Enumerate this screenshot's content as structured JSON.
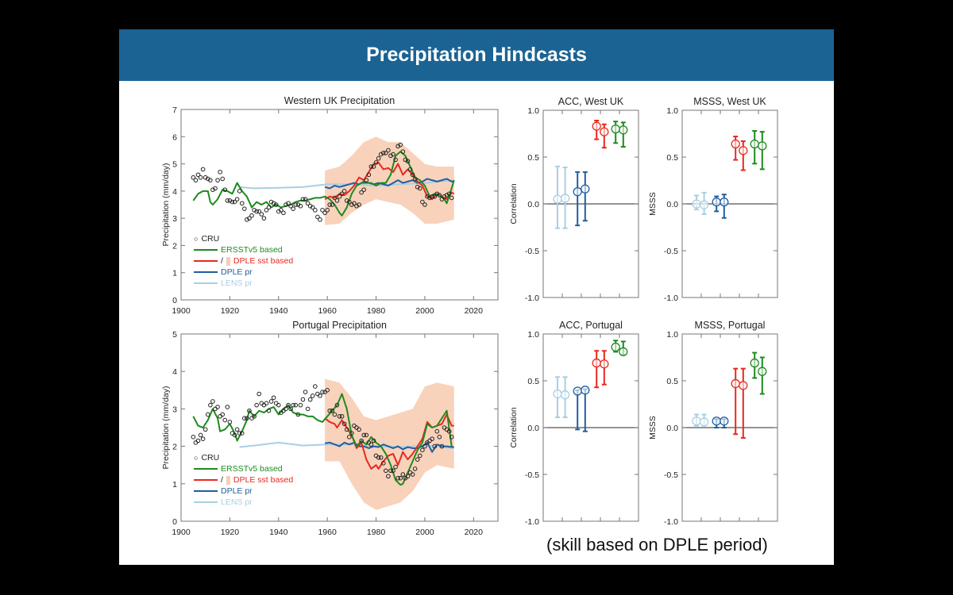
{
  "slide": {
    "title": "Precipitation Hindcasts",
    "note": "(skill based on DPLE period)"
  },
  "colors": {
    "cru": "#222222",
    "ersst": "#1e8a1e",
    "dple_sst": "#e8281e",
    "spread": "#f8cdb4",
    "dple_pr": "#1f5fa0",
    "lens": "#a9cfe3"
  },
  "legend": {
    "cru": "CRU",
    "ersst": "ERSSTv5 based",
    "slash": "/",
    "dple_sst": "DPLE sst based",
    "dple_pr": "DPLE pr",
    "lens": "LENS pr"
  },
  "chart_data": [
    {
      "type": "line",
      "title": "Western UK Precipitation",
      "xlabel": "",
      "ylabel": "Precipitation (mm/day)",
      "xlim": [
        1900,
        2030
      ],
      "ylim": [
        0,
        7
      ],
      "xticks": [
        1900,
        1920,
        1940,
        1960,
        1980,
        2000,
        2020
      ],
      "yticks": [
        0,
        1,
        2,
        3,
        4,
        5,
        6,
        7
      ],
      "cru": {
        "x0": 1905,
        "values": [
          4.5,
          4.4,
          4.6,
          4.5,
          4.8,
          4.5,
          4.45,
          4.4,
          4.05,
          4.1,
          4.4,
          4.7,
          4.45,
          4.05,
          3.65,
          3.65,
          3.6,
          3.6,
          3.7,
          4.0,
          3.55,
          3.35,
          2.95,
          3.0,
          3.1,
          3.3,
          3.25,
          3.25,
          3.15,
          3.0,
          3.3,
          3.4,
          3.6,
          3.55,
          3.5,
          3.25,
          3.3,
          3.2,
          3.5,
          3.55,
          3.45,
          3.35,
          3.5,
          3.5,
          3.45,
          3.7,
          3.7,
          3.55,
          3.45,
          3.4,
          3.3,
          3.05,
          2.95,
          3.3,
          3.2,
          3.3,
          3.5,
          3.5,
          3.75,
          3.65,
          3.8,
          3.9,
          4.0,
          3.65,
          3.6,
          3.5,
          3.55,
          3.45,
          3.5,
          3.95,
          4.05,
          4.4,
          4.6,
          4.9,
          4.9,
          5.05,
          5.2,
          5.35,
          5.4,
          5.4,
          5.5,
          5.3,
          5.35,
          5.15,
          5.65,
          5.7,
          5.45,
          5.15,
          5.1,
          4.8,
          4.6,
          4.45,
          4.15,
          4.1,
          3.6,
          3.5,
          3.8,
          3.75,
          3.8,
          3.8,
          3.9,
          3.85,
          3.7,
          3.8,
          3.85,
          3.9,
          3.75
        ]
      },
      "ersst": {
        "x": [
          1905,
          1907,
          1909,
          1911,
          1912,
          1913,
          1915,
          1917,
          1919,
          1921,
          1923,
          1925,
          1927,
          1929,
          1931,
          1933,
          1935,
          1937,
          1939,
          1941,
          1943,
          1945,
          1947,
          1949,
          1951,
          1953,
          1955,
          1957,
          1959,
          1961,
          1963,
          1965,
          1966,
          1968,
          1970,
          1972,
          1974,
          1976,
          1978,
          1980,
          1982,
          1984,
          1986,
          1988,
          1990,
          1992,
          1994,
          1996,
          1998,
          2000,
          2002,
          2004,
          2006,
          2008,
          2009,
          2011,
          2012
        ],
        "y": [
          3.65,
          3.9,
          4.0,
          4.0,
          3.6,
          3.5,
          3.7,
          4.05,
          4.0,
          3.9,
          4.3,
          4.0,
          3.8,
          3.4,
          3.6,
          3.5,
          3.6,
          3.4,
          3.5,
          3.4,
          3.45,
          3.5,
          3.6,
          3.65,
          3.65,
          3.7,
          3.75,
          3.75,
          3.8,
          3.7,
          3.5,
          3.2,
          3.1,
          3.4,
          3.9,
          4.2,
          4.3,
          4.3,
          4.3,
          4.2,
          4.3,
          4.3,
          4.6,
          5.3,
          5.45,
          5.3,
          4.9,
          4.5,
          4.4,
          4.2,
          3.8,
          3.9,
          3.85,
          3.7,
          3.55,
          4.1,
          4.4
        ]
      },
      "dple_sst": {
        "x": [
          1959,
          1961,
          1963,
          1965,
          1967,
          1969,
          1971,
          1973,
          1975,
          1977,
          1979,
          1981,
          1983,
          1985,
          1987,
          1989,
          1991,
          1993,
          1995,
          1997,
          1999,
          2001,
          2003,
          2005,
          2007,
          2009,
          2011,
          2012
        ],
        "y": [
          3.7,
          3.8,
          3.75,
          3.9,
          3.85,
          4.0,
          4.2,
          4.5,
          4.4,
          4.7,
          5.0,
          5.05,
          4.8,
          4.85,
          4.7,
          5.0,
          4.6,
          4.8,
          4.6,
          4.35,
          4.2,
          3.8,
          3.7,
          3.9,
          3.8,
          3.7,
          3.95,
          3.9
        ]
      },
      "spread": {
        "x": [
          1959,
          1965,
          1970,
          1975,
          1980,
          1985,
          1990,
          1995,
          2000,
          2005,
          2012
        ],
        "lower": [
          2.75,
          2.8,
          3.2,
          3.5,
          3.7,
          3.6,
          3.5,
          3.2,
          2.8,
          2.8,
          2.95
        ],
        "upper": [
          4.75,
          4.9,
          5.3,
          5.8,
          6.0,
          5.8,
          5.8,
          5.4,
          5.0,
          4.9,
          4.9
        ]
      },
      "dple_pr": {
        "x": [
          1959,
          1961,
          1963,
          1965,
          1967,
          1969,
          1971,
          1973,
          1975,
          1977,
          1979,
          1981,
          1983,
          1985,
          1987,
          1989,
          1991,
          1993,
          1995,
          1997,
          1999,
          2001,
          2003,
          2005,
          2007,
          2009,
          2011,
          2012
        ],
        "y": [
          4.15,
          4.1,
          4.2,
          4.15,
          4.2,
          4.25,
          4.3,
          4.25,
          4.35,
          4.3,
          4.25,
          4.3,
          4.25,
          4.2,
          4.3,
          4.4,
          4.3,
          4.35,
          4.4,
          4.3,
          4.35,
          4.45,
          4.4,
          4.35,
          4.4,
          4.45,
          4.35,
          4.35
        ]
      },
      "lens": {
        "x": [
          1924,
          1930,
          1940,
          1950,
          1960,
          1970,
          1980,
          1990,
          2000,
          2012
        ],
        "y": [
          4.15,
          4.1,
          4.12,
          4.15,
          4.25,
          4.25,
          4.2,
          4.25,
          4.3,
          4.4
        ]
      }
    },
    {
      "type": "line",
      "title": "Portugal Precipitation",
      "xlabel": "",
      "ylabel": "Precipitation (mm/day)",
      "xlim": [
        1900,
        2030
      ],
      "ylim": [
        0,
        5
      ],
      "xticks": [
        1900,
        1920,
        1940,
        1960,
        1980,
        2000,
        2020
      ],
      "yticks": [
        0,
        1,
        2,
        3,
        4,
        5
      ],
      "cru": {
        "x0": 1905,
        "values": [
          2.25,
          2.1,
          2.15,
          2.3,
          2.2,
          2.45,
          2.85,
          3.1,
          3.2,
          3.0,
          3.05,
          2.8,
          2.85,
          2.7,
          3.05,
          2.65,
          2.35,
          2.3,
          2.45,
          2.35,
          2.35,
          2.75,
          2.75,
          2.95,
          2.75,
          2.8,
          3.1,
          3.4,
          3.15,
          3.1,
          3.15,
          2.95,
          3.2,
          3.3,
          3.15,
          3.1,
          2.9,
          2.95,
          3.0,
          3.1,
          3.0,
          3.1,
          3.1,
          2.85,
          3.1,
          3.25,
          3.45,
          3.0,
          3.25,
          3.35,
          3.6,
          3.4,
          3.35,
          3.45,
          3.45,
          3.5,
          2.95,
          2.95,
          2.85,
          3.1,
          2.8,
          2.8,
          2.6,
          2.45,
          2.25,
          2.35,
          2.55,
          2.5,
          2.45,
          2.15,
          2.3,
          2.3,
          2.1,
          2.05,
          2.15,
          1.75,
          1.7,
          1.7,
          1.55,
          1.35,
          1.2,
          1.35,
          1.35,
          1.45,
          1.15,
          1.15,
          1.25,
          1.15,
          1.2,
          1.3,
          1.25,
          1.4,
          1.65,
          1.75,
          1.9,
          2.0,
          2.1,
          2.15,
          2.2,
          2.0,
          2.4,
          2.25,
          2.0,
          2.5,
          2.45,
          2.4,
          2.25
        ]
      },
      "ersst": {
        "x": [
          1905,
          1907,
          1909,
          1911,
          1913,
          1915,
          1916,
          1918,
          1920,
          1922,
          1923,
          1925,
          1927,
          1928,
          1930,
          1932,
          1934,
          1936,
          1938,
          1940,
          1942,
          1944,
          1946,
          1948,
          1950,
          1952,
          1954,
          1956,
          1958,
          1960,
          1962,
          1964,
          1966,
          1968,
          1970,
          1972,
          1974,
          1976,
          1978,
          1980,
          1982,
          1984,
          1986,
          1988,
          1990,
          1991,
          1993,
          1995,
          1997,
          1999,
          2001,
          2003,
          2005,
          2007,
          2009,
          2011
        ],
        "y": [
          2.8,
          2.55,
          2.5,
          2.7,
          3.0,
          2.75,
          2.4,
          2.45,
          2.6,
          2.35,
          2.15,
          2.4,
          2.7,
          2.95,
          2.8,
          2.95,
          2.9,
          3.0,
          3.05,
          2.85,
          3.0,
          3.1,
          2.9,
          2.85,
          2.85,
          2.8,
          2.8,
          2.7,
          2.65,
          2.8,
          2.95,
          3.1,
          3.4,
          3.0,
          2.3,
          2.0,
          2.15,
          2.05,
          2.25,
          2.1,
          2.0,
          1.8,
          1.5,
          1.1,
          0.97,
          1.0,
          1.3,
          1.6,
          1.9,
          2.1,
          2.6,
          2.5,
          2.55,
          2.75,
          2.95,
          2.0
        ]
      },
      "dple_sst": {
        "x": [
          1959,
          1961,
          1963,
          1964,
          1966,
          1968,
          1970,
          1972,
          1974,
          1976,
          1978,
          1980,
          1981,
          1983,
          1985,
          1987,
          1989,
          1991,
          1993,
          1995,
          1997,
          1999,
          2001,
          2003,
          2005,
          2007,
          2009,
          2011,
          2012
        ],
        "y": [
          2.75,
          2.65,
          2.6,
          2.5,
          2.7,
          2.5,
          2.3,
          1.95,
          2.1,
          1.65,
          1.4,
          1.5,
          1.4,
          1.6,
          1.75,
          1.8,
          1.5,
          1.85,
          1.65,
          1.8,
          2.0,
          2.2,
          2.65,
          2.5,
          2.55,
          2.6,
          2.85,
          2.55,
          2.55
        ]
      },
      "spread": {
        "x": [
          1959,
          1965,
          1970,
          1975,
          1980,
          1985,
          1990,
          1995,
          2000,
          2005,
          2012
        ],
        "lower": [
          1.6,
          1.6,
          1.0,
          0.5,
          0.3,
          0.4,
          0.5,
          0.8,
          1.3,
          1.5,
          1.4
        ],
        "upper": [
          3.8,
          3.7,
          3.3,
          2.8,
          2.7,
          2.8,
          2.9,
          3.0,
          3.6,
          3.7,
          3.6
        ]
      },
      "dple_pr": {
        "x": [
          1959,
          1961,
          1963,
          1965,
          1967,
          1969,
          1971,
          1973,
          1975,
          1977,
          1979,
          1981,
          1983,
          1985,
          1987,
          1989,
          1991,
          1993,
          1995,
          1997,
          1999,
          2001,
          2003,
          2005,
          2007,
          2009,
          2011,
          2012
        ],
        "y": [
          2.08,
          2.1,
          2.05,
          2.0,
          2.1,
          2.05,
          2.1,
          2.0,
          2.0,
          1.95,
          2.0,
          1.98,
          2.05,
          2.0,
          1.95,
          2.0,
          1.92,
          1.98,
          1.95,
          1.95,
          2.0,
          2.1,
          1.85,
          2.05,
          2.0,
          2.0,
          1.98,
          1.98
        ]
      },
      "lens": {
        "x": [
          1924,
          1930,
          1940,
          1950,
          1960,
          1970,
          1980,
          1990,
          2000,
          2012
        ],
        "y": [
          1.98,
          2.02,
          2.1,
          2.02,
          2.05,
          2.05,
          2.0,
          1.98,
          2.02,
          1.95
        ]
      }
    },
    {
      "type": "scatter",
      "title": "ACC, West UK",
      "ylabel": "Correlation",
      "ylim": [
        -1,
        1
      ],
      "yticks": [
        "-1.0",
        "-0.5",
        "0.0",
        "0.5",
        "1.0"
      ],
      "points": [
        {
          "s": "lens",
          "v": 0.05,
          "lo": -0.26,
          "hi": 0.4
        },
        {
          "s": "lens",
          "v": 0.06,
          "lo": -0.26,
          "hi": 0.39
        },
        {
          "s": "dple_pr",
          "v": 0.13,
          "lo": -0.23,
          "hi": 0.34
        },
        {
          "s": "dple_pr",
          "v": 0.16,
          "lo": -0.18,
          "hi": 0.34
        },
        {
          "s": "dple_sst",
          "v": 0.83,
          "lo": 0.69,
          "hi": 0.89
        },
        {
          "s": "dple_sst",
          "v": 0.77,
          "lo": 0.6,
          "hi": 0.85
        },
        {
          "s": "ersst",
          "v": 0.8,
          "lo": 0.65,
          "hi": 0.88
        },
        {
          "s": "ersst",
          "v": 0.79,
          "lo": 0.61,
          "hi": 0.87
        }
      ]
    },
    {
      "type": "scatter",
      "title": "MSSS, West UK",
      "ylabel": "MSSS",
      "ylim": [
        -1,
        1
      ],
      "yticks": [
        "-1.0",
        "-0.5",
        "0.0",
        "0.5",
        "1.0"
      ],
      "points": [
        {
          "s": "lens",
          "v": 0.0,
          "lo": -0.06,
          "hi": 0.09
        },
        {
          "s": "lens",
          "v": -0.01,
          "lo": -0.11,
          "hi": 0.12
        },
        {
          "s": "dple_pr",
          "v": 0.02,
          "lo": -0.08,
          "hi": 0.08
        },
        {
          "s": "dple_pr",
          "v": 0.02,
          "lo": -0.15,
          "hi": 0.1
        },
        {
          "s": "dple_sst",
          "v": 0.64,
          "lo": 0.47,
          "hi": 0.72
        },
        {
          "s": "dple_sst",
          "v": 0.57,
          "lo": 0.36,
          "hi": 0.67
        },
        {
          "s": "ersst",
          "v": 0.64,
          "lo": 0.43,
          "hi": 0.78
        },
        {
          "s": "ersst",
          "v": 0.62,
          "lo": 0.37,
          "hi": 0.77
        }
      ]
    },
    {
      "type": "scatter",
      "title": "ACC, Portugal",
      "ylabel": "Correlation",
      "ylim": [
        -1,
        1
      ],
      "yticks": [
        "-1.0",
        "-0.5",
        "0.0",
        "0.5",
        "1.0"
      ],
      "points": [
        {
          "s": "lens",
          "v": 0.36,
          "lo": 0.11,
          "hi": 0.54
        },
        {
          "s": "lens",
          "v": 0.35,
          "lo": 0.11,
          "hi": 0.54
        },
        {
          "s": "dple_pr",
          "v": 0.39,
          "lo": -0.02,
          "hi": 0.4
        },
        {
          "s": "dple_pr",
          "v": 0.4,
          "lo": -0.04,
          "hi": 0.41
        },
        {
          "s": "dple_sst",
          "v": 0.69,
          "lo": 0.43,
          "hi": 0.82
        },
        {
          "s": "dple_sst",
          "v": 0.68,
          "lo": 0.46,
          "hi": 0.82
        },
        {
          "s": "ersst",
          "v": 0.86,
          "lo": 0.81,
          "hi": 0.93
        },
        {
          "s": "ersst",
          "v": 0.81,
          "lo": 0.78,
          "hi": 0.92
        }
      ]
    },
    {
      "type": "scatter",
      "title": "MSSS, Portugal",
      "ylabel": "MSSS",
      "ylim": [
        -1,
        1
      ],
      "yticks": [
        "-1.0",
        "-0.5",
        "0.0",
        "0.5",
        "1.0"
      ],
      "points": [
        {
          "s": "lens",
          "v": 0.07,
          "lo": 0.02,
          "hi": 0.14
        },
        {
          "s": "lens",
          "v": 0.06,
          "lo": 0.02,
          "hi": 0.14
        },
        {
          "s": "dple_pr",
          "v": 0.07,
          "lo": 0.0,
          "hi": 0.09
        },
        {
          "s": "dple_pr",
          "v": 0.07,
          "lo": 0.0,
          "hi": 0.09
        },
        {
          "s": "dple_sst",
          "v": 0.47,
          "lo": -0.07,
          "hi": 0.63
        },
        {
          "s": "dple_sst",
          "v": 0.45,
          "lo": -0.11,
          "hi": 0.63
        },
        {
          "s": "ersst",
          "v": 0.69,
          "lo": 0.53,
          "hi": 0.8
        },
        {
          "s": "ersst",
          "v": 0.6,
          "lo": 0.36,
          "hi": 0.75
        }
      ]
    }
  ]
}
